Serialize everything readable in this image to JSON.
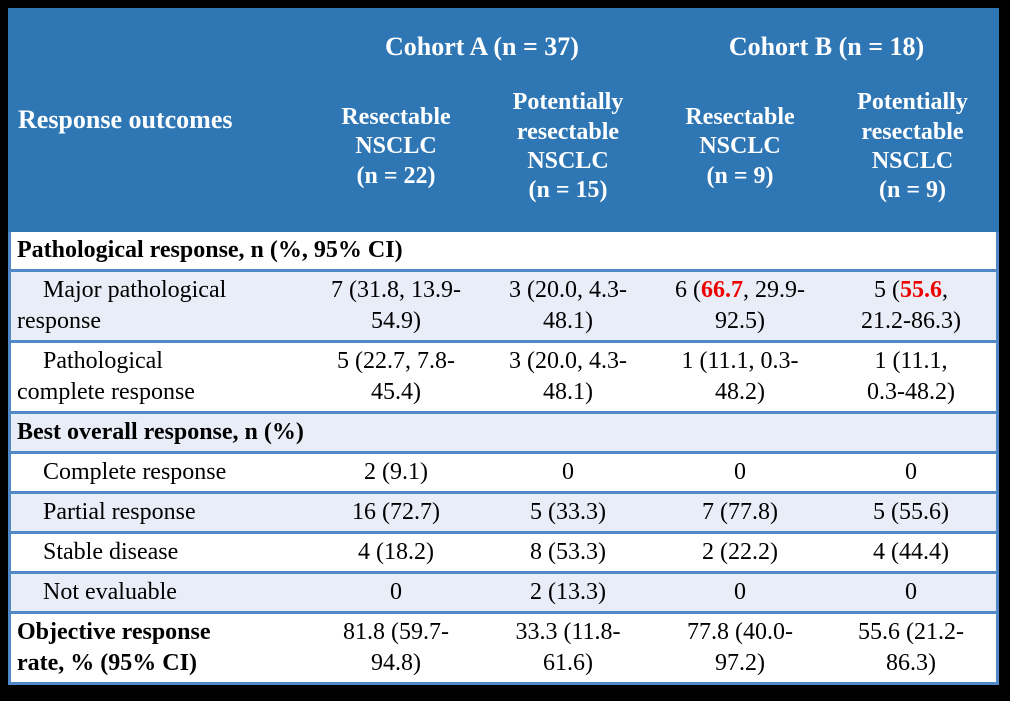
{
  "table": {
    "corner_label": "Response outcomes",
    "cohorts": [
      {
        "label": "Cohort A (n = 37)",
        "subcolumns": [
          "Resectable\nNSCLC\n(n = 22)",
          "Potentially\nresectable\nNSCLC\n(n = 15)"
        ]
      },
      {
        "label": "Cohort B (n = 18)",
        "subcolumns": [
          "Resectable\nNSCLC\n(n = 9)",
          "Potentially\nresectable\nNSCLC\n(n = 9)"
        ]
      }
    ],
    "rows": [
      {
        "type": "section",
        "shaded": false,
        "label": "Pathological response, n (%, 95% CI)"
      },
      {
        "type": "data",
        "shaded": true,
        "indent": true,
        "label": "Major pathological\nresponse",
        "cells": [
          "7 (31.8, 13.9-\n54.9)",
          "3 (20.0, 4.3-\n48.1)",
          [
            {
              "t": "6 ("
            },
            {
              "t": "66.7",
              "red": true
            },
            {
              "t": ", 29.9-\n92.5)"
            }
          ],
          [
            {
              "t": "5 ("
            },
            {
              "t": "55.6",
              "red": true
            },
            {
              "t": ",\n21.2-86.3)"
            }
          ]
        ]
      },
      {
        "type": "data",
        "shaded": false,
        "indent": true,
        "label": "Pathological\ncomplete response",
        "cells": [
          "5 (22.7, 7.8-\n45.4)",
          "3 (20.0, 4.3-\n48.1)",
          "1 (11.1, 0.3-\n48.2)",
          "1 (11.1,\n0.3-48.2)"
        ]
      },
      {
        "type": "section",
        "shaded": true,
        "label": "Best overall response, n (%)"
      },
      {
        "type": "data",
        "shaded": false,
        "indent": true,
        "label": "Complete response",
        "cells": [
          "2 (9.1)",
          "0",
          "0",
          "0"
        ]
      },
      {
        "type": "data",
        "shaded": true,
        "indent": true,
        "label": "Partial response",
        "cells": [
          "16 (72.7)",
          "5 (33.3)",
          "7 (77.8)",
          "5 (55.6)"
        ]
      },
      {
        "type": "data",
        "shaded": false,
        "indent": true,
        "label": "Stable disease",
        "cells": [
          "4 (18.2)",
          "8 (53.3)",
          "2 (22.2)",
          "4 (44.4)"
        ]
      },
      {
        "type": "data",
        "shaded": true,
        "indent": true,
        "label": "Not evaluable",
        "cells": [
          "0",
          "2 (13.3)",
          "0",
          "0"
        ]
      },
      {
        "type": "data",
        "shaded": false,
        "indent": false,
        "bold_label": true,
        "label": "Objective response\nrate, % (95% CI)",
        "cells": [
          "81.8 (59.7-\n94.8)",
          "33.3 (11.8-\n61.6)",
          "77.8 (40.0-\n97.2)",
          "55.6 (21.2-\n86.3)"
        ]
      }
    ],
    "colors": {
      "header_bg": "#2F76B5",
      "band_bg": "#E9EDF7",
      "border": "#5088C8",
      "highlight": "#EE0000",
      "frame": "#000000",
      "header_text": "#FFFFFF",
      "body_text": "#000000"
    }
  }
}
